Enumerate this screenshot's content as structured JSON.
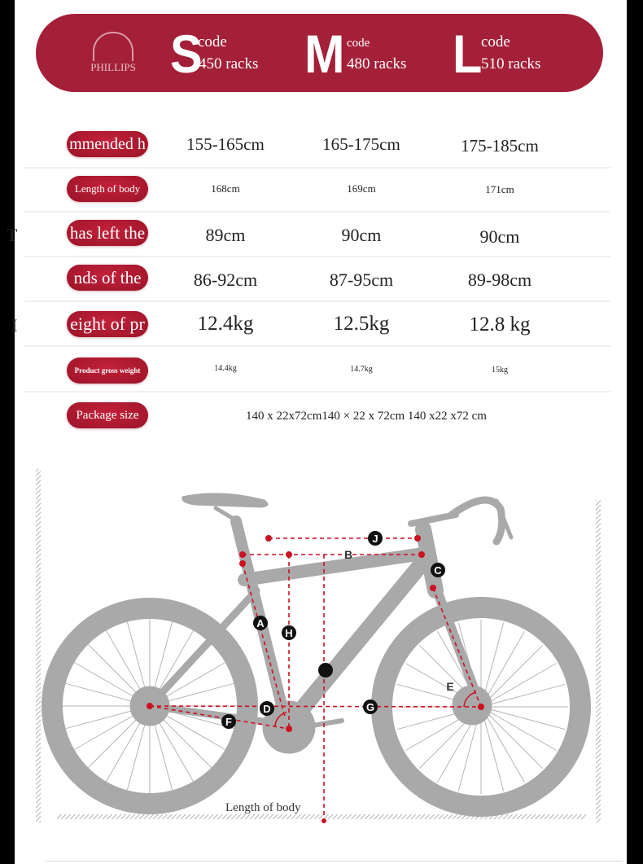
{
  "brand": "PHILLIPS",
  "sizes": [
    {
      "letter": "S",
      "code": "code",
      "racks": "450 racks"
    },
    {
      "letter": "M",
      "code": "code",
      "racks": "480 racks"
    },
    {
      "letter": "L",
      "code": "code",
      "racks": "510 racks"
    }
  ],
  "stray_text": [
    "T",
    "I"
  ],
  "table": {
    "rows": [
      {
        "label": "mmended h",
        "values": [
          "155-165cm",
          "165-175cm",
          "175-185cm"
        ]
      },
      {
        "label": "Length of body",
        "values": [
          "168cm",
          "169cm",
          "171cm"
        ]
      },
      {
        "label": "has left the",
        "values": [
          "89cm",
          "90cm",
          "90cm"
        ]
      },
      {
        "label": "nds of the",
        "values": [
          "86-92cm",
          "87-95cm",
          "89-98cm"
        ]
      },
      {
        "label": "eight of pr",
        "values": [
          "12.4kg",
          "12.5kg",
          "12.8 kg"
        ]
      },
      {
        "label": "Product gross weight",
        "values": [
          "14.4kg",
          "14.7kg",
          "15kg"
        ]
      }
    ],
    "package": {
      "label": "Package size",
      "value": "140 x 22x72cm140 × 22 x 72cm 140 x22 x72 cm"
    }
  },
  "diagram": {
    "markers": [
      "A",
      "B",
      "C",
      "D",
      "E",
      "F",
      "G",
      "H",
      "J"
    ],
    "caption": "Length of body",
    "colors": {
      "frame": "#a9a9a9",
      "accent": "#cc1122",
      "banner": "#a41f38"
    }
  }
}
